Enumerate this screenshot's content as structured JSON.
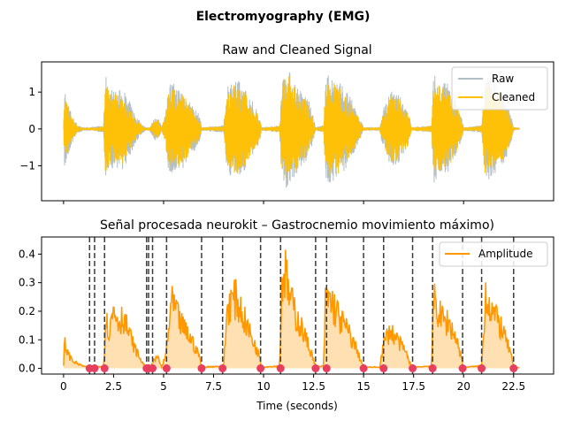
{
  "figure": {
    "suptitle": "Electromyography (EMG)",
    "colors": {
      "raw": "#b0bec5",
      "cleaned": "#ffc107",
      "amplitude": "#ff9800",
      "fill": "#ffe0b2",
      "onset": "#e83e5f",
      "marker_line": "#3c3c3c"
    }
  },
  "chart_data": [
    {
      "type": "line",
      "title": "Raw and Cleaned Signal",
      "xlim": [
        -1.1,
        24.5
      ],
      "ylim": [
        -1.95,
        1.82
      ],
      "yticks": [
        -1,
        0,
        1
      ],
      "xticks": [
        0,
        2.5,
        5,
        7.5,
        10,
        12.5,
        15,
        17.5,
        20,
        22.5
      ],
      "legend": {
        "position": "top-right",
        "entries": [
          "Raw",
          "Cleaned"
        ]
      },
      "series": [
        {
          "name": "Raw",
          "envelope": [
            [
              0.0,
              0.0
            ],
            [
              0.05,
              1.25
            ],
            [
              0.15,
              0.9
            ],
            [
              0.3,
              0.6
            ],
            [
              0.5,
              0.3
            ],
            [
              0.7,
              0.12
            ],
            [
              1.0,
              0.05
            ],
            [
              1.4,
              0.05
            ],
            [
              2.0,
              0.1
            ],
            [
              2.1,
              1.5
            ],
            [
              2.3,
              1.15
            ],
            [
              2.6,
              1.05
            ],
            [
              3.0,
              1.1
            ],
            [
              3.3,
              0.75
            ],
            [
              3.6,
              0.4
            ],
            [
              3.9,
              0.15
            ],
            [
              4.1,
              0.05
            ],
            [
              4.3,
              0.05
            ],
            [
              4.5,
              0.25
            ],
            [
              4.7,
              0.4
            ],
            [
              4.9,
              0.05
            ],
            [
              5.1,
              0.5
            ],
            [
              5.3,
              1.35
            ],
            [
              5.6,
              1.2
            ],
            [
              6.0,
              1.1
            ],
            [
              6.4,
              0.7
            ],
            [
              6.8,
              0.4
            ],
            [
              6.9,
              0.05
            ],
            [
              8.0,
              0.1
            ],
            [
              8.2,
              1.3
            ],
            [
              8.6,
              1.4
            ],
            [
              9.0,
              1.2
            ],
            [
              9.4,
              0.8
            ],
            [
              9.8,
              0.4
            ],
            [
              9.9,
              0.05
            ],
            [
              10.8,
              0.1
            ],
            [
              10.9,
              1.3
            ],
            [
              11.1,
              1.7
            ],
            [
              11.4,
              1.5
            ],
            [
              11.8,
              1.1
            ],
            [
              12.2,
              0.9
            ],
            [
              12.5,
              0.3
            ],
            [
              12.6,
              0.05
            ],
            [
              13.0,
              0.1
            ],
            [
              13.1,
              1.5
            ],
            [
              13.4,
              1.45
            ],
            [
              13.8,
              1.35
            ],
            [
              14.2,
              1.0
            ],
            [
              14.6,
              0.6
            ],
            [
              15.0,
              0.05
            ],
            [
              15.8,
              0.05
            ],
            [
              16.0,
              0.6
            ],
            [
              16.4,
              1.05
            ],
            [
              16.8,
              0.9
            ],
            [
              17.2,
              0.6
            ],
            [
              17.4,
              0.05
            ],
            [
              18.4,
              0.1
            ],
            [
              18.5,
              1.5
            ],
            [
              18.8,
              1.3
            ],
            [
              19.2,
              1.25
            ],
            [
              19.6,
              0.8
            ],
            [
              19.9,
              0.3
            ],
            [
              20.0,
              0.05
            ],
            [
              20.9,
              0.1
            ],
            [
              21.1,
              1.55
            ],
            [
              21.5,
              1.35
            ],
            [
              21.9,
              1.1
            ],
            [
              22.3,
              0.55
            ],
            [
              22.5,
              0.05
            ],
            [
              22.8,
              0.03
            ]
          ]
        },
        {
          "name": "Cleaned",
          "envelope": [
            [
              0.0,
              0.0
            ],
            [
              0.05,
              1.05
            ],
            [
              0.15,
              0.8
            ],
            [
              0.3,
              0.5
            ],
            [
              0.5,
              0.25
            ],
            [
              0.7,
              0.08
            ],
            [
              1.0,
              0.04
            ],
            [
              1.4,
              0.04
            ],
            [
              2.0,
              0.08
            ],
            [
              2.1,
              1.35
            ],
            [
              2.3,
              1.0
            ],
            [
              2.6,
              0.95
            ],
            [
              3.0,
              0.95
            ],
            [
              3.3,
              0.6
            ],
            [
              3.6,
              0.3
            ],
            [
              3.9,
              0.1
            ],
            [
              4.1,
              0.04
            ],
            [
              4.3,
              0.04
            ],
            [
              4.5,
              0.2
            ],
            [
              4.7,
              0.3
            ],
            [
              4.9,
              0.04
            ],
            [
              5.1,
              0.4
            ],
            [
              5.3,
              1.2
            ],
            [
              5.6,
              1.05
            ],
            [
              6.0,
              0.95
            ],
            [
              6.4,
              0.6
            ],
            [
              6.8,
              0.3
            ],
            [
              6.9,
              0.04
            ],
            [
              8.0,
              0.08
            ],
            [
              8.2,
              1.15
            ],
            [
              8.6,
              1.25
            ],
            [
              9.0,
              1.05
            ],
            [
              9.4,
              0.7
            ],
            [
              9.8,
              0.3
            ],
            [
              9.9,
              0.04
            ],
            [
              10.8,
              0.08
            ],
            [
              10.9,
              1.15
            ],
            [
              11.1,
              1.55
            ],
            [
              11.4,
              1.35
            ],
            [
              11.8,
              0.95
            ],
            [
              12.2,
              0.75
            ],
            [
              12.5,
              0.25
            ],
            [
              12.6,
              0.04
            ],
            [
              13.0,
              0.08
            ],
            [
              13.1,
              1.35
            ],
            [
              13.4,
              1.3
            ],
            [
              13.8,
              1.2
            ],
            [
              14.2,
              0.85
            ],
            [
              14.6,
              0.5
            ],
            [
              15.0,
              0.04
            ],
            [
              15.8,
              0.04
            ],
            [
              16.0,
              0.5
            ],
            [
              16.4,
              0.95
            ],
            [
              16.8,
              0.8
            ],
            [
              17.2,
              0.5
            ],
            [
              17.4,
              0.04
            ],
            [
              18.4,
              0.08
            ],
            [
              18.5,
              1.35
            ],
            [
              18.8,
              1.15
            ],
            [
              19.2,
              1.1
            ],
            [
              19.6,
              0.7
            ],
            [
              19.9,
              0.25
            ],
            [
              20.0,
              0.04
            ],
            [
              20.9,
              0.08
            ],
            [
              21.1,
              1.4
            ],
            [
              21.5,
              1.2
            ],
            [
              21.9,
              0.95
            ],
            [
              22.3,
              0.45
            ],
            [
              22.5,
              0.04
            ],
            [
              22.8,
              0.02
            ]
          ]
        }
      ]
    },
    {
      "type": "area",
      "title": "Señal procesada neurokit – Gastrocnemio movimiento máximo)",
      "xlabel": "Time (seconds)",
      "xlim": [
        -1.1,
        24.5
      ],
      "ylim": [
        -0.02,
        0.46
      ],
      "yticks": [
        0.0,
        0.1,
        0.2,
        0.3,
        0.4
      ],
      "xticks": [
        0,
        2.5,
        5,
        7.5,
        10,
        12.5,
        15,
        17.5,
        20,
        22.5
      ],
      "legend": {
        "position": "top-right",
        "entries": [
          "Amplitude"
        ]
      },
      "series": [
        {
          "name": "Amplitude",
          "envelope": [
            [
              0.0,
              0.01
            ],
            [
              0.05,
              0.11
            ],
            [
              0.15,
              0.08
            ],
            [
              0.3,
              0.05
            ],
            [
              0.5,
              0.03
            ],
            [
              0.8,
              0.015
            ],
            [
              1.2,
              0.005
            ],
            [
              1.4,
              0.005
            ],
            [
              2.0,
              0.01
            ],
            [
              2.1,
              0.2
            ],
            [
              2.3,
              0.16
            ],
            [
              2.5,
              0.25
            ],
            [
              2.8,
              0.2
            ],
            [
              3.0,
              0.22
            ],
            [
              3.3,
              0.14
            ],
            [
              3.6,
              0.08
            ],
            [
              3.9,
              0.03
            ],
            [
              4.1,
              0.005
            ],
            [
              4.3,
              0.005
            ],
            [
              4.5,
              0.03
            ],
            [
              4.7,
              0.05
            ],
            [
              4.9,
              0.005
            ],
            [
              5.1,
              0.05
            ],
            [
              5.4,
              0.28
            ],
            [
              5.7,
              0.22
            ],
            [
              6.0,
              0.17
            ],
            [
              6.4,
              0.12
            ],
            [
              6.8,
              0.05
            ],
            [
              6.9,
              0.005
            ],
            [
              8.0,
              0.01
            ],
            [
              8.2,
              0.27
            ],
            [
              8.6,
              0.3
            ],
            [
              9.0,
              0.22
            ],
            [
              9.4,
              0.13
            ],
            [
              9.8,
              0.05
            ],
            [
              9.9,
              0.005
            ],
            [
              10.8,
              0.01
            ],
            [
              10.9,
              0.3
            ],
            [
              11.0,
              0.44
            ],
            [
              11.3,
              0.3
            ],
            [
              11.7,
              0.21
            ],
            [
              12.1,
              0.13
            ],
            [
              12.5,
              0.04
            ],
            [
              12.6,
              0.005
            ],
            [
              13.0,
              0.01
            ],
            [
              13.1,
              0.3
            ],
            [
              13.4,
              0.28
            ],
            [
              13.8,
              0.21
            ],
            [
              14.2,
              0.16
            ],
            [
              14.6,
              0.09
            ],
            [
              15.0,
              0.005
            ],
            [
              15.8,
              0.005
            ],
            [
              16.0,
              0.1
            ],
            [
              16.3,
              0.16
            ],
            [
              16.7,
              0.12
            ],
            [
              17.1,
              0.07
            ],
            [
              17.4,
              0.005
            ],
            [
              18.4,
              0.01
            ],
            [
              18.5,
              0.3
            ],
            [
              18.9,
              0.21
            ],
            [
              19.3,
              0.19
            ],
            [
              19.7,
              0.11
            ],
            [
              20.0,
              0.005
            ],
            [
              20.9,
              0.01
            ],
            [
              21.1,
              0.32
            ],
            [
              21.5,
              0.23
            ],
            [
              21.9,
              0.17
            ],
            [
              22.3,
              0.08
            ],
            [
              22.5,
              0.005
            ],
            [
              22.8,
              0.003
            ]
          ]
        }
      ],
      "event_lines": [
        1.3,
        1.55,
        2.05,
        4.15,
        4.25,
        4.45,
        5.15,
        6.9,
        7.95,
        9.85,
        10.85,
        12.6,
        13.15,
        15.0,
        16.0,
        17.45,
        18.45,
        19.95,
        20.9,
        22.5
      ],
      "onsets": [
        1.3,
        1.55,
        2.05,
        4.15,
        4.25,
        4.45,
        5.15,
        6.9,
        7.95,
        9.85,
        10.85,
        12.6,
        13.15,
        15.0,
        16.0,
        17.45,
        18.45,
        19.95,
        20.9,
        22.5
      ]
    }
  ]
}
